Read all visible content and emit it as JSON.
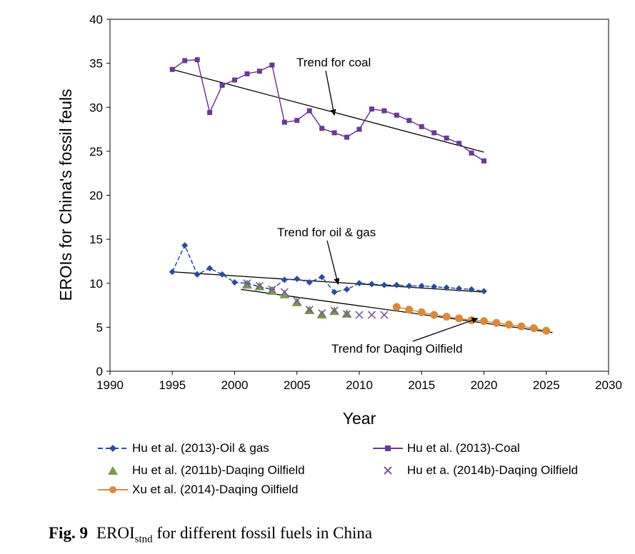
{
  "chart_data": {
    "type": "scatter",
    "xlabel": "Year",
    "ylabel": "EROIs for China's fossil feuls",
    "xlim": [
      1990,
      2030
    ],
    "ylim": [
      0,
      40
    ],
    "x_ticks": [
      1990,
      1995,
      2000,
      2005,
      2010,
      2015,
      2020,
      2025,
      2030
    ],
    "y_ticks": [
      0,
      5,
      10,
      15,
      20,
      25,
      30,
      35,
      40
    ],
    "grid": false,
    "legend_position": "bottom",
    "series": [
      {
        "name": "Hu et al. (2013)-Oil & gas",
        "style": "line-marker",
        "marker": "diamond",
        "color": "#2B4C9B",
        "x": [
          1995,
          1996,
          1997,
          1998,
          1999,
          2000,
          2001,
          2002,
          2003,
          2004,
          2005,
          2006,
          2007,
          2008,
          2009,
          2010,
          2011,
          2012,
          2013,
          2014,
          2015,
          2016,
          2017,
          2018,
          2019,
          2020
        ],
        "y": [
          11.3,
          14.3,
          11.0,
          11.7,
          11.0,
          10.1,
          10.0,
          9.6,
          9.3,
          10.4,
          10.5,
          10.1,
          10.7,
          9.0,
          9.3,
          10.0,
          9.9,
          9.8,
          9.8,
          9.7,
          9.7,
          9.6,
          9.5,
          9.4,
          9.3,
          9.1
        ]
      },
      {
        "name": "Hu et al. (2013)-Coal",
        "style": "line-marker",
        "marker": "square",
        "color": "#6B3A93",
        "x": [
          1995,
          1996,
          1997,
          1998,
          1999,
          2000,
          2001,
          2002,
          2003,
          2004,
          2005,
          2006,
          2007,
          2008,
          2009,
          2010,
          2011,
          2012,
          2013,
          2014,
          2015,
          2016,
          2017,
          2018,
          2019,
          2020
        ],
        "y": [
          34.3,
          35.3,
          35.4,
          29.4,
          32.5,
          33.1,
          33.8,
          34.1,
          34.8,
          28.3,
          28.5,
          29.6,
          27.6,
          27.1,
          26.6,
          27.5,
          29.8,
          29.6,
          29.1,
          28.5,
          27.8,
          27.1,
          26.5,
          25.9,
          24.8,
          23.9
        ]
      },
      {
        "name": "Hu et al. (2011b)-Daqing Oilfield",
        "style": "marker",
        "marker": "triangle",
        "color": "#7B9A4B",
        "x": [
          2001,
          2002,
          2003,
          2004,
          2005,
          2006,
          2007,
          2008,
          2009
        ],
        "y": [
          9.8,
          9.6,
          9.1,
          8.7,
          7.8,
          6.9,
          6.4,
          6.8,
          6.5
        ]
      },
      {
        "name": "Hu et a. (2014b)-Daqing Oilfield",
        "style": "marker",
        "marker": "x",
        "color": "#7A5A9A",
        "x": [
          2001,
          2002,
          2003,
          2004,
          2005,
          2006,
          2007,
          2008,
          2009,
          2010,
          2011,
          2012
        ],
        "y": [
          10.0,
          9.7,
          9.3,
          9.0,
          8.0,
          7.0,
          6.6,
          6.9,
          6.5,
          6.4,
          6.4,
          6.4
        ]
      },
      {
        "name": "Xu et al. (2014)-Daqing Oilfield",
        "style": "line-marker",
        "marker": "circle",
        "color": "#D98A3D",
        "x": [
          2013,
          2014,
          2015,
          2016,
          2017,
          2018,
          2019,
          2020,
          2021,
          2022,
          2023,
          2024,
          2025
        ],
        "y": [
          7.3,
          7.0,
          6.7,
          6.4,
          6.2,
          6.0,
          5.8,
          5.7,
          5.5,
          5.3,
          5.1,
          4.9,
          4.6
        ]
      }
    ],
    "trend_lines": [
      {
        "label": "Trend for coal",
        "x": [
          1995,
          2020
        ],
        "y": [
          34.3,
          24.9
        ]
      },
      {
        "label": "Trend for oil & gas",
        "x": [
          1995,
          2020
        ],
        "y": [
          11.3,
          9.0
        ]
      },
      {
        "label": "Trend for Daqing Oilfield",
        "x": [
          2000.5,
          2025.5
        ],
        "y": [
          9.3,
          4.4
        ]
      }
    ],
    "annotations": [
      {
        "text": "Trend for coal",
        "arrow_to": [
          2008,
          29.1
        ]
      },
      {
        "text": "Trend for oil & gas",
        "arrow_to": [
          2008.3,
          9.9
        ]
      },
      {
        "text": "Trend for Daqing Oilfield",
        "arrow_to": [
          2019.5,
          6.0
        ]
      }
    ]
  },
  "caption": {
    "fig_label": "Fig. 9",
    "text_main": "EROI",
    "text_sub": "stnd",
    "text_rest": " for different fossil fuels in China"
  }
}
